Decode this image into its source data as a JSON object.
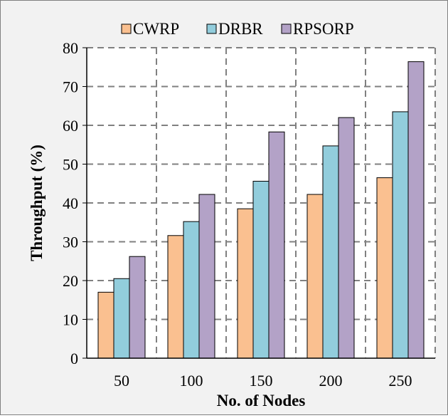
{
  "chart_data": {
    "type": "bar",
    "title": "",
    "xlabel": "No. of Nodes",
    "ylabel": "Throughput  (%)",
    "categories": [
      "50",
      "100",
      "150",
      "200",
      "250"
    ],
    "series": [
      {
        "name": "CWRP",
        "color": "#fac090",
        "values": [
          17.0,
          31.6,
          38.5,
          42.2,
          46.5
        ]
      },
      {
        "name": "DRBR",
        "color": "#92cddc",
        "values": [
          20.5,
          35.2,
          45.6,
          54.7,
          63.5
        ]
      },
      {
        "name": "RPSORP",
        "color": "#b3a2c7",
        "values": [
          26.2,
          42.2,
          58.3,
          62.0,
          76.4
        ]
      }
    ],
    "ylim": [
      0,
      80
    ],
    "yticks": [
      "0",
      "10",
      "20",
      "30",
      "40",
      "50",
      "60",
      "70",
      "80"
    ],
    "grid": true,
    "grid_style": "dashed",
    "legend_position": "top"
  }
}
